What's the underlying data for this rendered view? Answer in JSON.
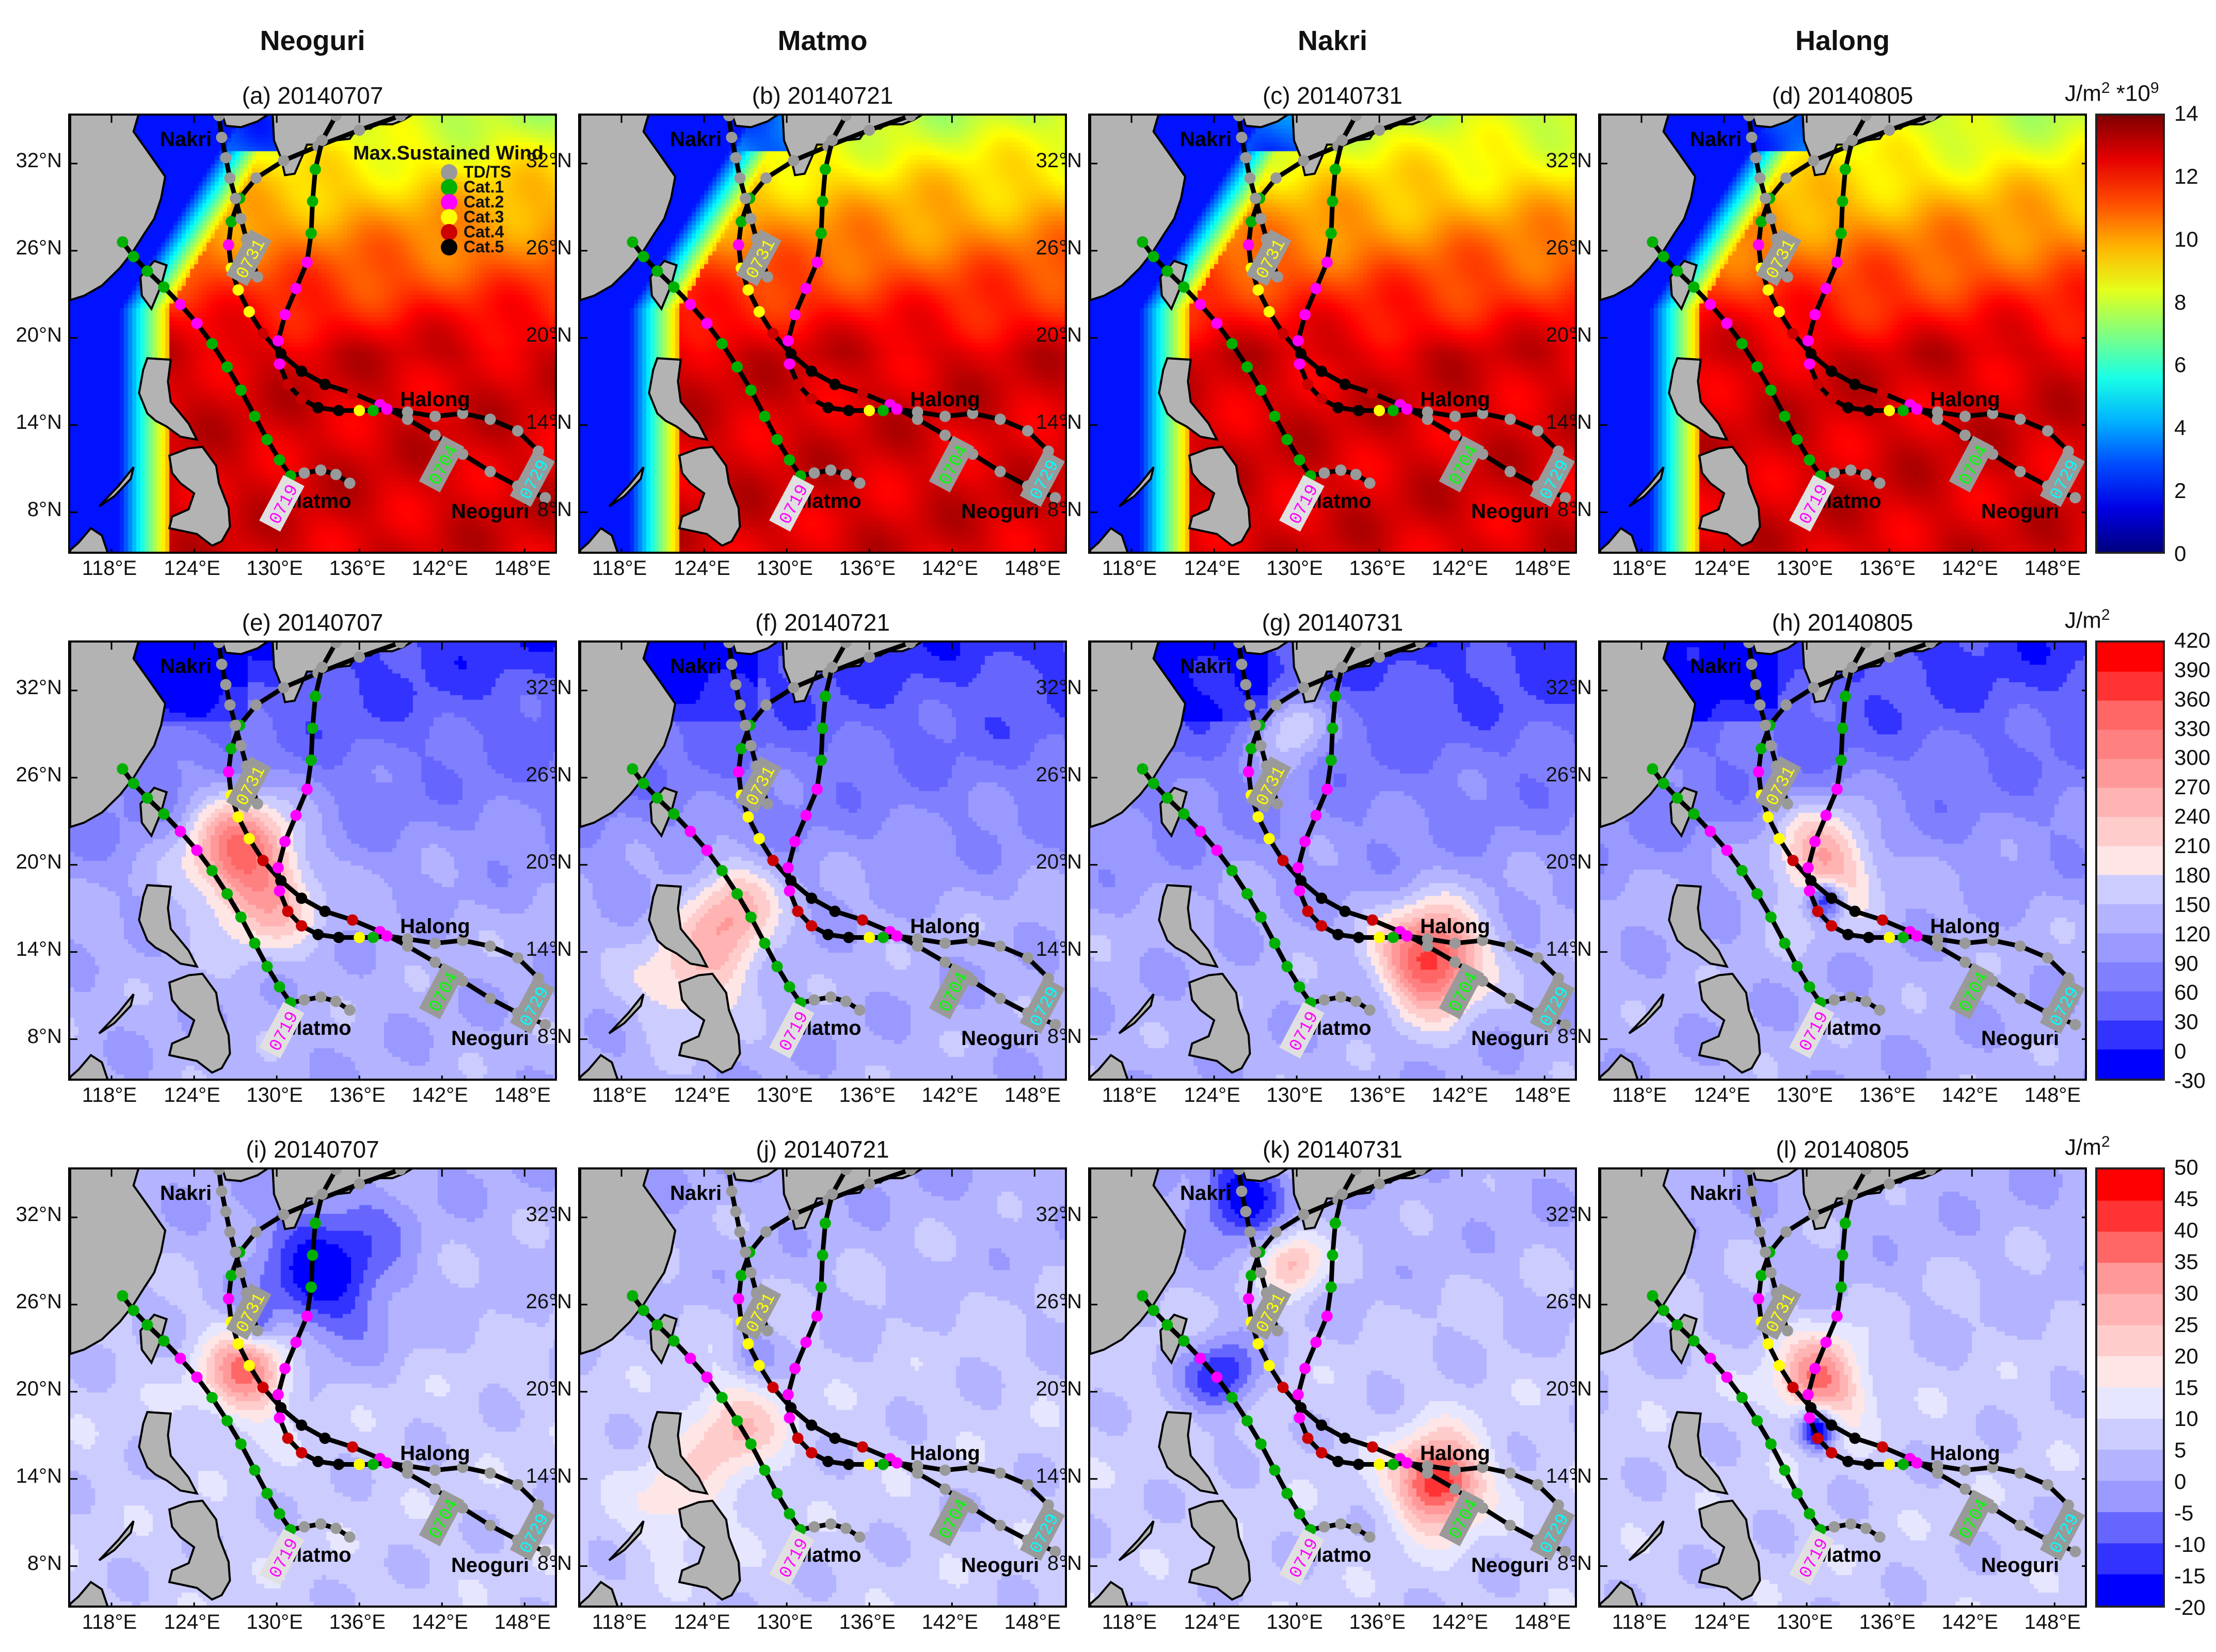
{
  "columns": [
    "Neoguri",
    "Matmo",
    "Nakri",
    "Halong"
  ],
  "panels": [
    {
      "label": "(a) 20140707"
    },
    {
      "label": "(b) 20140721"
    },
    {
      "label": "(c) 20140731"
    },
    {
      "label": "(d) 20140805"
    },
    {
      "label": "(e) 20140707"
    },
    {
      "label": "(f) 20140721"
    },
    {
      "label": "(g) 20140731"
    },
    {
      "label": "(h) 20140805"
    },
    {
      "label": "(i) 20140707"
    },
    {
      "label": "(j) 20140721"
    },
    {
      "label": "(k) 20140731"
    },
    {
      "label": "(l) 20140805"
    }
  ],
  "axes": {
    "lon_range": [
      115,
      150.5
    ],
    "lat_range": [
      5,
      35.3
    ],
    "x_ticks": [
      118,
      124,
      130,
      136,
      142,
      148
    ],
    "x_tick_labels": [
      "118°E",
      "124°E",
      "130°E",
      "136°E",
      "142°E",
      "148°E"
    ],
    "y_ticks": [
      8,
      14,
      20,
      26,
      32
    ],
    "y_tick_labels": [
      "8°N",
      "14°N",
      "20°N",
      "26°N",
      "32°N"
    ]
  },
  "colorbars": [
    {
      "unit": "J/m",
      "unit_sup": "2",
      "unit_suffix": " *10",
      "unit_suffix_sup": "9",
      "type": "continuous-jet",
      "range": [
        0,
        14
      ],
      "ticks": [
        "14",
        "12",
        "10",
        "8",
        "6",
        "4",
        "2",
        "0"
      ]
    },
    {
      "unit": "J/m",
      "unit_sup": "2",
      "type": "discrete",
      "range": [
        -30,
        420
      ],
      "ticks": [
        "420",
        "390",
        "360",
        "330",
        "300",
        "270",
        "240",
        "210",
        "180",
        "150",
        "120",
        "90",
        "60",
        "30",
        "0",
        "-30"
      ],
      "colors": [
        "#ff0000",
        "#ff3333",
        "#ff6666",
        "#ff8080",
        "#ff9999",
        "#ffb3b3",
        "#ffcccc",
        "#ffe6e6",
        "#ccccff",
        "#b3b3ff",
        "#9999ff",
        "#8080ff",
        "#6666ff",
        "#3333ff",
        "#0000ff"
      ]
    },
    {
      "unit": "J/m",
      "unit_sup": "2",
      "type": "discrete",
      "range": [
        -20,
        50
      ],
      "ticks": [
        "50",
        "45",
        "40",
        "35",
        "30",
        "25",
        "20",
        "15",
        "10",
        "5",
        "0",
        "-5",
        "-10",
        "-15",
        "-20"
      ],
      "colors": [
        "#ff0000",
        "#ff3333",
        "#ff6666",
        "#ff9999",
        "#ffb3b3",
        "#ffcccc",
        "#ffe6e6",
        "#e6e6ff",
        "#ccccff",
        "#b3b3ff",
        "#9999ff",
        "#6666ff",
        "#3333ff",
        "#0000ff"
      ]
    }
  ],
  "legend": {
    "title": "Max.Sustained Wind",
    "items": [
      {
        "label": "TD/TS",
        "color": "#999999"
      },
      {
        "label": "Cat.1",
        "color": "#00b000"
      },
      {
        "label": "Cat.2",
        "color": "#ff00ff"
      },
      {
        "label": "Cat.3",
        "color": "#ffff00"
      },
      {
        "label": "Cat.4",
        "color": "#cc0000"
      },
      {
        "label": "Cat.5",
        "color": "#000000"
      }
    ]
  },
  "tracks": [
    {
      "name": "Neoguri",
      "name_at": [
        145.5,
        7.6
      ],
      "date_label": "0704",
      "date_color": "#00ff00",
      "date_bg": "#9a9a9a",
      "date_at": [
        142,
        11.3
      ],
      "points": [
        [
          149.5,
          9,
          0
        ],
        [
          147.5,
          9.8,
          0
        ],
        [
          145.5,
          10.8,
          0
        ],
        [
          143.5,
          12,
          0
        ],
        [
          141.5,
          13.3,
          0
        ],
        [
          139.5,
          14.4,
          0
        ],
        [
          137.5,
          15.4,
          2
        ],
        [
          135.5,
          16.2,
          4
        ],
        [
          133.5,
          16.8,
          5
        ],
        [
          131.8,
          17.7,
          5
        ],
        [
          130.3,
          18.9,
          5
        ],
        [
          129,
          20.3,
          4
        ],
        [
          128,
          21.8,
          3
        ],
        [
          127.2,
          23.3,
          3
        ],
        [
          126.7,
          24.8,
          3
        ],
        [
          126.5,
          26.4,
          2
        ],
        [
          126.7,
          28,
          1
        ],
        [
          127.3,
          29.6,
          1
        ],
        [
          128.5,
          31,
          0
        ],
        [
          130.5,
          32.2,
          0
        ],
        [
          133,
          33.2,
          0
        ],
        [
          136,
          34.3,
          0
        ],
        [
          139,
          35.3,
          0
        ]
      ]
    },
    {
      "name": "Halong",
      "name_at": [
        141.5,
        15.3
      ],
      "date_label": "0729",
      "date_color": "#00ffff",
      "date_bg": "#9a9a9a",
      "date_at": [
        148.6,
        10.3
      ],
      "points": [
        [
          149,
          12.2,
          0
        ],
        [
          147.5,
          13.6,
          0
        ],
        [
          145.5,
          14.4,
          0
        ],
        [
          143.5,
          14.8,
          0
        ],
        [
          141.5,
          14.6,
          0
        ],
        [
          139.5,
          14.9,
          0
        ],
        [
          138,
          15.1,
          2
        ],
        [
          137,
          15,
          1
        ],
        [
          136,
          15,
          3
        ],
        [
          134.5,
          15,
          5
        ],
        [
          133,
          15.2,
          5
        ],
        [
          131.8,
          15.8,
          4
        ],
        [
          130.8,
          16.8,
          4
        ],
        [
          130.2,
          18.2,
          2
        ],
        [
          130.1,
          19.8,
          2
        ],
        [
          130.6,
          21.6,
          2
        ],
        [
          131.4,
          23.4,
          2
        ],
        [
          132.2,
          25.2,
          2
        ],
        [
          132.5,
          27.2,
          1
        ],
        [
          132.6,
          29.4,
          1
        ],
        [
          132.8,
          31.6,
          1
        ],
        [
          133.3,
          33.6,
          0
        ],
        [
          134.3,
          35.3,
          0
        ]
      ]
    },
    {
      "name": "Matmo",
      "name_at": [
        133,
        8.3
      ],
      "date_label": "0719",
      "date_color": "#ff00ff",
      "date_bg": "#e0e0e0",
      "date_at": [
        130.4,
        8.6
      ],
      "points": [
        [
          135.3,
          10,
          0
        ],
        [
          134.3,
          10.6,
          0
        ],
        [
          133.2,
          10.9,
          0
        ],
        [
          132,
          10.7,
          0
        ],
        [
          131,
          10.5,
          1
        ],
        [
          130.2,
          11.6,
          1
        ],
        [
          129.3,
          13,
          1
        ],
        [
          128.4,
          14.6,
          1
        ],
        [
          127.4,
          16.4,
          1
        ],
        [
          126.4,
          18,
          1
        ],
        [
          125.3,
          19.6,
          1
        ],
        [
          124.2,
          21,
          2
        ],
        [
          123,
          22.3,
          2
        ],
        [
          121.8,
          23.5,
          1
        ],
        [
          120.6,
          24.6,
          1
        ],
        [
          119.6,
          25.6,
          1
        ],
        [
          118.8,
          26.6,
          1
        ]
      ]
    },
    {
      "name": "Nakri",
      "name_at": [
        123.4,
        33.2
      ],
      "date_label": "0731",
      "date_color": "#ffff00",
      "date_bg": "#9a9a9a",
      "date_at": [
        128,
        25.5
      ],
      "points": [
        [
          128.6,
          24.2,
          0
        ],
        [
          128.2,
          25.4,
          0
        ],
        [
          127.8,
          26.8,
          0
        ],
        [
          127.4,
          28.2,
          0
        ],
        [
          127,
          29.6,
          0
        ],
        [
          126.6,
          31,
          0
        ],
        [
          126.3,
          32.4,
          0
        ],
        [
          126,
          33.8,
          0
        ],
        [
          125.8,
          35.3,
          0
        ]
      ]
    }
  ],
  "colors": {
    "land": "#b3b3b3",
    "track_line": "#000000"
  }
}
